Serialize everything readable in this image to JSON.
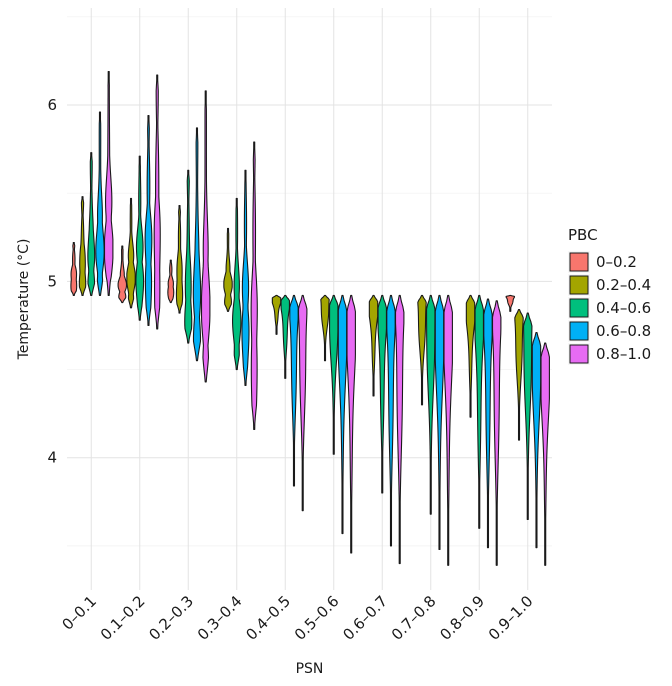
{
  "chart_data": {
    "type": "violin",
    "title": "",
    "xlabel": "PSN",
    "ylabel": "Temperature (°C)",
    "categories": [
      "0–0.1",
      "0.1–0.2",
      "0.2–0.3",
      "0.3–0.4",
      "0.4–0.5",
      "0.5–0.6",
      "0.6–0.7",
      "0.7–0.8",
      "0.8–0.9",
      "0.9–1.0"
    ],
    "ylim": [
      3.25,
      6.55
    ],
    "yticks": [
      4,
      5,
      6
    ],
    "grid": true,
    "legend": {
      "title": "PBC",
      "position": "right",
      "entries": [
        "0–0.2",
        "0.2–0.4",
        "0.4–0.6",
        "0.6–0.8",
        "0.8–1.0"
      ]
    },
    "colors": [
      "#F8766D",
      "#A3A500",
      "#00BF7D",
      "#00B0F6",
      "#E76BF3"
    ],
    "series": [
      {
        "name": "0–0.2",
        "min": [
          4.92,
          4.88,
          4.88,
          null,
          null,
          null,
          null,
          null,
          null,
          4.83
        ],
        "max": [
          5.22,
          5.2,
          5.12,
          5.12,
          null,
          null,
          null,
          null,
          null,
          4.92
        ]
      },
      {
        "name": "0.2–0.4",
        "min": [
          4.92,
          4.85,
          4.82,
          4.83,
          4.7,
          4.55,
          4.35,
          4.3,
          4.23,
          4.1
        ],
        "max": [
          5.48,
          5.47,
          5.43,
          5.3,
          4.92,
          4.92,
          4.92,
          4.92,
          4.92,
          4.84
        ]
      },
      {
        "name": "0.4–0.6",
        "min": [
          4.92,
          4.78,
          4.65,
          4.5,
          4.45,
          4.02,
          3.8,
          3.68,
          3.6,
          3.65
        ],
        "max": [
          5.73,
          5.71,
          5.63,
          5.47,
          4.92,
          4.92,
          4.92,
          4.92,
          4.92,
          4.82
        ]
      },
      {
        "name": "0.6–0.8",
        "min": [
          4.92,
          4.75,
          4.55,
          4.41,
          3.84,
          3.57,
          3.5,
          3.48,
          3.49,
          3.49
        ],
        "max": [
          5.96,
          5.94,
          5.87,
          5.63,
          4.92,
          4.92,
          4.92,
          4.92,
          4.9,
          4.71
        ]
      },
      {
        "name": "0.8–1.0",
        "min": [
          4.92,
          4.73,
          4.43,
          4.16,
          3.7,
          3.46,
          3.4,
          3.39,
          3.39,
          3.39
        ],
        "max": [
          6.19,
          6.17,
          6.08,
          5.79,
          4.92,
          4.92,
          4.92,
          4.92,
          4.89,
          4.65
        ]
      }
    ]
  }
}
